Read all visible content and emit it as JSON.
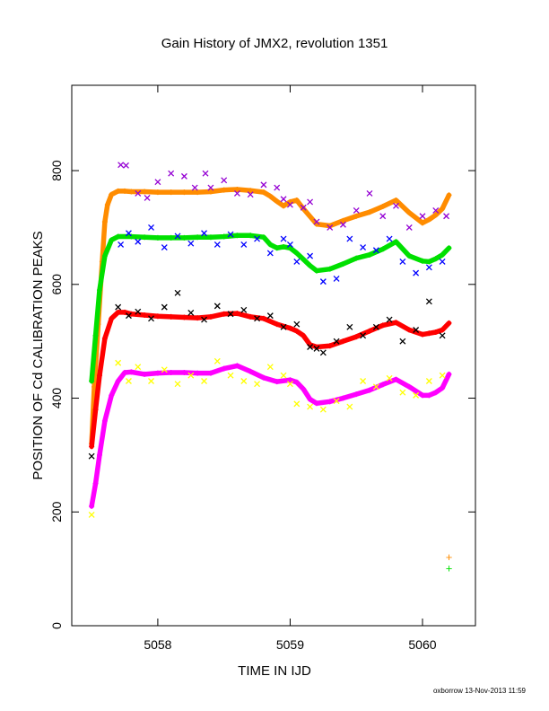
{
  "chart_data": {
    "type": "scatter",
    "title": "Gain History of JMX2, revolution 1351",
    "xlabel": "TIME IN IJD",
    "ylabel": "POSITION OF Cd CALIBRATION PEAKS",
    "xlim": [
      5057.35,
      5060.4
    ],
    "ylim": [
      0,
      950
    ],
    "xticks": [
      5058,
      5059,
      5060
    ],
    "xtick_labels": [
      "5058",
      "5059",
      "5060"
    ],
    "yticks": [
      0,
      200,
      400,
      600,
      800
    ],
    "ytick_labels": [
      "0",
      "200",
      "400",
      "600",
      "800"
    ],
    "grid": false,
    "legend": "none",
    "footer": "oxborrow 13-Nov-2013 11:59",
    "series": [
      {
        "color": "#ff8c00",
        "marker": "plus",
        "x": [
          5057.5,
          5057.52,
          5057.55,
          5057.58,
          5057.6,
          5057.62,
          5057.65,
          5057.7,
          5057.75,
          5057.8,
          5057.9,
          5058.0,
          5058.1,
          5058.2,
          5058.3,
          5058.4,
          5058.5,
          5058.6,
          5058.7,
          5058.8,
          5058.85,
          5058.9,
          5058.95,
          5059.0,
          5059.05,
          5059.1,
          5059.2,
          5059.3,
          5059.4,
          5059.5,
          5059.6,
          5059.7,
          5059.8,
          5059.9,
          5060.0,
          5060.05,
          5060.1,
          5060.15,
          5060.2
        ],
        "y": [
          320,
          420,
          530,
          640,
          710,
          740,
          758,
          764,
          764,
          763,
          763,
          762,
          762,
          762,
          762,
          763,
          766,
          767,
          765,
          762,
          755,
          746,
          738,
          745,
          748,
          733,
          706,
          703,
          712,
          720,
          727,
          737,
          748,
          726,
          708,
          714,
          722,
          733,
          757
        ]
      },
      {
        "color": "#00e000",
        "marker": "plus",
        "x": [
          5057.5,
          5057.53,
          5057.56,
          5057.6,
          5057.65,
          5057.7,
          5057.8,
          5057.9,
          5058.0,
          5058.1,
          5058.2,
          5058.3,
          5058.4,
          5058.5,
          5058.6,
          5058.7,
          5058.8,
          5058.85,
          5058.9,
          5058.95,
          5059.0,
          5059.05,
          5059.1,
          5059.15,
          5059.2,
          5059.3,
          5059.4,
          5059.5,
          5059.6,
          5059.7,
          5059.8,
          5059.9,
          5060.0,
          5060.05,
          5060.1,
          5060.15,
          5060.2
        ],
        "y": [
          430,
          510,
          590,
          650,
          678,
          684,
          684,
          683,
          682,
          682,
          682,
          683,
          683,
          684,
          686,
          686,
          683,
          670,
          664,
          666,
          664,
          655,
          644,
          633,
          624,
          627,
          636,
          646,
          652,
          662,
          675,
          650,
          641,
          640,
          645,
          652,
          664
        ]
      },
      {
        "color": "#ff0000",
        "marker": "plus",
        "x": [
          5057.5,
          5057.53,
          5057.56,
          5057.6,
          5057.65,
          5057.7,
          5057.75,
          5057.8,
          5057.9,
          5058.0,
          5058.1,
          5058.2,
          5058.3,
          5058.4,
          5058.5,
          5058.6,
          5058.7,
          5058.8,
          5058.9,
          5059.0,
          5059.05,
          5059.1,
          5059.15,
          5059.2,
          5059.3,
          5059.4,
          5059.5,
          5059.6,
          5059.7,
          5059.8,
          5059.9,
          5060.0,
          5060.05,
          5060.1,
          5060.15,
          5060.2
        ],
        "y": [
          315,
          380,
          440,
          505,
          540,
          551,
          551,
          548,
          546,
          544,
          543,
          542,
          541,
          543,
          548,
          549,
          543,
          540,
          530,
          523,
          518,
          510,
          494,
          490,
          492,
          500,
          508,
          518,
          528,
          533,
          520,
          512,
          514,
          516,
          520,
          532
        ]
      },
      {
        "color": "#ff00ff",
        "marker": "plus",
        "x": [
          5057.5,
          5057.53,
          5057.56,
          5057.6,
          5057.65,
          5057.7,
          5057.75,
          5057.8,
          5057.9,
          5058.0,
          5058.1,
          5058.2,
          5058.3,
          5058.4,
          5058.5,
          5058.6,
          5058.7,
          5058.8,
          5058.9,
          5059.0,
          5059.05,
          5059.1,
          5059.15,
          5059.2,
          5059.3,
          5059.4,
          5059.5,
          5059.6,
          5059.7,
          5059.8,
          5059.9,
          5060.0,
          5060.05,
          5060.1,
          5060.15,
          5060.2
        ],
        "y": [
          210,
          250,
          300,
          360,
          405,
          430,
          445,
          446,
          442,
          444,
          445,
          445,
          444,
          444,
          452,
          457,
          447,
          436,
          429,
          432,
          428,
          416,
          398,
          391,
          394,
          400,
          407,
          414,
          424,
          433,
          420,
          405,
          405,
          410,
          418,
          442
        ]
      },
      {
        "color": "#9400d3",
        "marker": "cross",
        "x": [
          5057.72,
          5057.76,
          5057.85,
          5057.92,
          5058.0,
          5058.1,
          5058.2,
          5058.28,
          5058.36,
          5058.4,
          5058.5,
          5058.6,
          5058.7,
          5058.8,
          5058.9,
          5058.95,
          5059.0,
          5059.1,
          5059.15,
          5059.2,
          5059.3,
          5059.4,
          5059.5,
          5059.6,
          5059.7,
          5059.8,
          5059.9,
          5060.0,
          5060.1,
          5060.18
        ],
        "y": [
          810,
          809,
          760,
          752,
          780,
          795,
          790,
          770,
          795,
          770,
          783,
          760,
          758,
          775,
          770,
          750,
          740,
          735,
          745,
          710,
          700,
          705,
          730,
          760,
          720,
          738,
          700,
          720,
          730,
          720
        ]
      },
      {
        "color": "#0000ff",
        "marker": "cross",
        "x": [
          5057.72,
          5057.78,
          5057.85,
          5057.95,
          5058.05,
          5058.15,
          5058.25,
          5058.35,
          5058.45,
          5058.55,
          5058.65,
          5058.75,
          5058.85,
          5058.95,
          5059.0,
          5059.05,
          5059.15,
          5059.25,
          5059.35,
          5059.45,
          5059.55,
          5059.65,
          5059.75,
          5059.85,
          5059.95,
          5060.05,
          5060.15
        ],
        "y": [
          670,
          690,
          675,
          700,
          665,
          685,
          672,
          690,
          670,
          688,
          670,
          680,
          655,
          680,
          670,
          640,
          650,
          605,
          610,
          680,
          665,
          660,
          680,
          640,
          620,
          630,
          640
        ]
      },
      {
        "color": "#000000",
        "marker": "cross",
        "x": [
          5057.5,
          5057.7,
          5057.78,
          5057.85,
          5057.95,
          5058.05,
          5058.15,
          5058.25,
          5058.35,
          5058.45,
          5058.55,
          5058.65,
          5058.75,
          5058.85,
          5058.95,
          5059.05,
          5059.15,
          5059.2,
          5059.25,
          5059.35,
          5059.45,
          5059.55,
          5059.65,
          5059.75,
          5059.85,
          5059.95,
          5060.05,
          5060.15
        ],
        "y": [
          298,
          560,
          545,
          552,
          540,
          560,
          585,
          550,
          538,
          562,
          548,
          555,
          540,
          545,
          525,
          530,
          490,
          487,
          480,
          500,
          525,
          510,
          525,
          538,
          500,
          520,
          570,
          510
        ]
      },
      {
        "color": "#ffff00",
        "marker": "cross",
        "x": [
          5057.5,
          5057.7,
          5057.78,
          5057.85,
          5057.95,
          5058.05,
          5058.15,
          5058.25,
          5058.35,
          5058.45,
          5058.55,
          5058.65,
          5058.75,
          5058.85,
          5058.95,
          5059.0,
          5059.05,
          5059.15,
          5059.25,
          5059.35,
          5059.45,
          5059.55,
          5059.65,
          5059.75,
          5059.85,
          5059.95,
          5060.05,
          5060.15
        ],
        "y": [
          195,
          462,
          430,
          455,
          430,
          450,
          425,
          440,
          430,
          465,
          440,
          430,
          425,
          455,
          440,
          425,
          390,
          385,
          380,
          395,
          385,
          430,
          420,
          435,
          410,
          405,
          430,
          440
        ]
      }
    ],
    "annotations": [
      {
        "text": "+",
        "color": "#ff8c00",
        "x": 5060.2,
        "y": 120
      },
      {
        "text": "+",
        "color": "#00e000",
        "x": 5060.2,
        "y": 100
      }
    ]
  }
}
